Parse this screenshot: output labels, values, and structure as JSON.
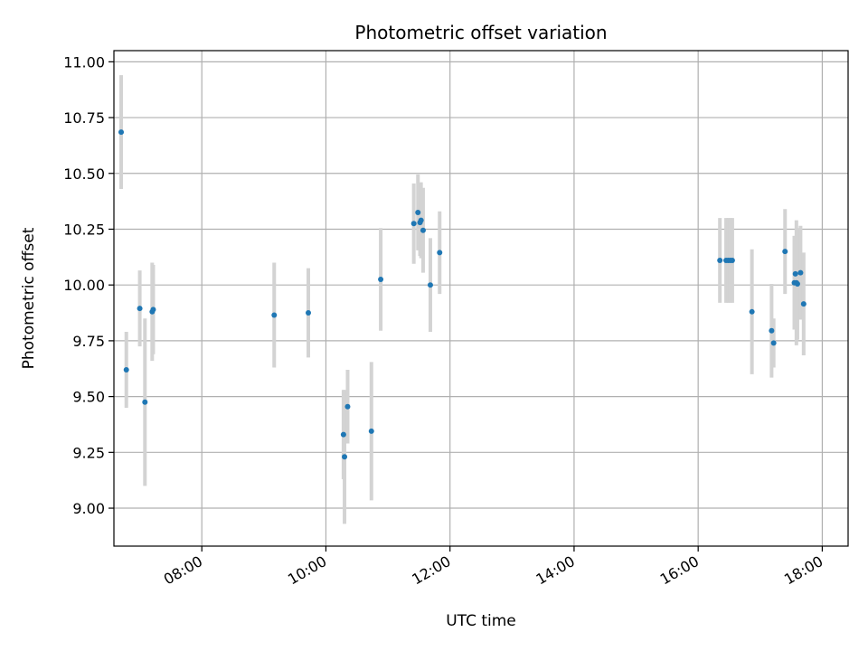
{
  "chart_data": {
    "type": "scatter",
    "title": "Photometric offset variation",
    "xlabel": "UTC time",
    "ylabel": "Photometric offset",
    "x_ticks": [
      "08:00",
      "10:00",
      "12:00",
      "14:00",
      "16:00",
      "18:00"
    ],
    "y_ticks": [
      "9.00",
      "9.25",
      "9.50",
      "9.75",
      "10.00",
      "10.25",
      "10.50",
      "10.75",
      "11.00"
    ],
    "xlim": [
      "06:35",
      "18:25"
    ],
    "ylim": [
      8.83,
      11.05
    ],
    "grid": true,
    "legend": "none",
    "colors": {
      "point": "#1f77b4",
      "errorbar": "#d3d3d3",
      "grid": "#b0b0b0"
    },
    "points": [
      {
        "time": "06:42",
        "y": 10.685,
        "err": 0.255
      },
      {
        "time": "06:47",
        "y": 9.62,
        "err": 0.17
      },
      {
        "time": "07:00",
        "y": 9.895,
        "err": 0.17
      },
      {
        "time": "07:05",
        "y": 9.475,
        "err": 0.375
      },
      {
        "time": "07:12",
        "y": 9.88,
        "err": 0.22
      },
      {
        "time": "07:13",
        "y": 9.89,
        "err": 0.2
      },
      {
        "time": "09:10",
        "y": 9.865,
        "err": 0.235
      },
      {
        "time": "09:43",
        "y": 9.875,
        "err": 0.2
      },
      {
        "time": "10:17",
        "y": 9.33,
        "err": 0.2
      },
      {
        "time": "10:18",
        "y": 9.23,
        "err": 0.3
      },
      {
        "time": "10:21",
        "y": 9.455,
        "err": 0.165
      },
      {
        "time": "10:44",
        "y": 9.345,
        "err": 0.31
      },
      {
        "time": "10:53",
        "y": 10.025,
        "err": 0.23
      },
      {
        "time": "11:25",
        "y": 10.275,
        "err": 0.18
      },
      {
        "time": "11:29",
        "y": 10.325,
        "err": 0.17
      },
      {
        "time": "11:31",
        "y": 10.28,
        "err": 0.15
      },
      {
        "time": "11:32",
        "y": 10.29,
        "err": 0.17
      },
      {
        "time": "11:34",
        "y": 10.245,
        "err": 0.19
      },
      {
        "time": "11:41",
        "y": 10.0,
        "err": 0.21
      },
      {
        "time": "11:50",
        "y": 10.145,
        "err": 0.185
      },
      {
        "time": "16:21",
        "y": 10.11,
        "err": 0.19
      },
      {
        "time": "16:27",
        "y": 10.11,
        "err": 0.19
      },
      {
        "time": "16:29",
        "y": 10.11,
        "err": 0.19
      },
      {
        "time": "16:31",
        "y": 10.11,
        "err": 0.19
      },
      {
        "time": "16:33",
        "y": 10.11,
        "err": 0.19
      },
      {
        "time": "16:52",
        "y": 9.88,
        "err": 0.28
      },
      {
        "time": "17:11",
        "y": 9.795,
        "err": 0.21
      },
      {
        "time": "17:13",
        "y": 9.74,
        "err": 0.11
      },
      {
        "time": "17:24",
        "y": 10.15,
        "err": 0.19
      },
      {
        "time": "17:33",
        "y": 10.01,
        "err": 0.21
      },
      {
        "time": "17:34",
        "y": 10.05,
        "err": 0.17
      },
      {
        "time": "17:35",
        "y": 10.01,
        "err": 0.28
      },
      {
        "time": "17:36",
        "y": 10.005,
        "err": 0.25
      },
      {
        "time": "17:39",
        "y": 10.055,
        "err": 0.21
      },
      {
        "time": "17:42",
        "y": 9.915,
        "err": 0.23
      }
    ]
  }
}
